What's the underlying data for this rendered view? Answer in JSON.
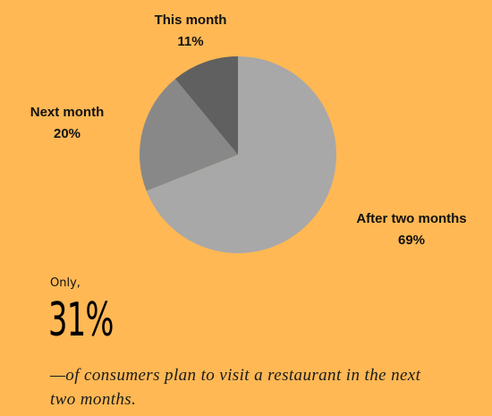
{
  "chart_data": {
    "type": "pie",
    "slices": [
      {
        "label": "This month",
        "value": 11,
        "value_label": "11%",
        "color": "#606060"
      },
      {
        "label": "Next month",
        "value": 20,
        "value_label": "20%",
        "color": "#888888"
      },
      {
        "label": "After two months",
        "value": 69,
        "value_label": "69%",
        "color": "#a8a8a8"
      }
    ],
    "start": "12 o'clock",
    "direction": "counter-clockwise"
  },
  "text": {
    "intro": "Only,",
    "big_stat": "31%",
    "statement": "—of consumers plan to visit a restaurant in the next two months."
  },
  "colors": {
    "background": "#ffb854"
  }
}
